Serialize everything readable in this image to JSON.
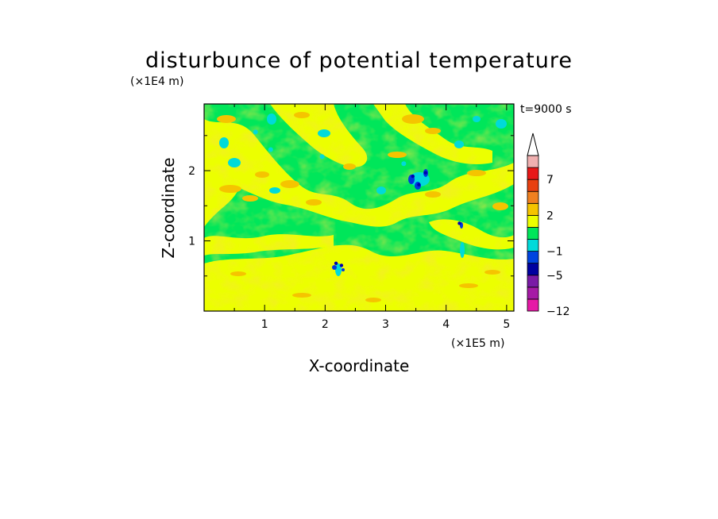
{
  "chart_data": {
    "type": "heatmap",
    "title": "disturbunce of potential temperature",
    "xlabel": "X-coordinate",
    "ylabel": "Z-coordinate",
    "x_scale_label": "(×1E5 m)",
    "y_scale_label": "(×1E4 m)",
    "time_label": "t=9000 s",
    "xlim": [
      0,
      5.12
    ],
    "ylim": [
      0,
      2.95
    ],
    "x_ticks": [
      "1",
      "2",
      "3",
      "4",
      "5"
    ],
    "y_ticks": [
      "1",
      "2"
    ],
    "colorbar": {
      "levels": [
        -12,
        -9,
        -7,
        -5,
        -3,
        -1,
        0,
        1,
        2,
        3,
        5,
        7,
        9,
        12
      ],
      "labels": [
        "7",
        "2",
        "−1",
        "−5",
        "−12"
      ],
      "extend": "max",
      "colors": [
        "#e61aa6",
        "#a61aa6",
        "#7a1aa6",
        "#0000a0",
        "#0044e0",
        "#00dada",
        "#00e65a",
        "#ecff00",
        "#f5c400",
        "#f08020",
        "#e84010",
        "#e81818",
        "#f0b0b0"
      ]
    },
    "field_features": [
      {
        "x": 3.45,
        "z": 1.92,
        "value": -5
      },
      {
        "x": 3.55,
        "z": 1.8,
        "value": -5
      },
      {
        "x": 3.66,
        "z": 1.97,
        "value": -5
      },
      {
        "x": 2.27,
        "z": 0.65,
        "value": -5
      },
      {
        "x": 2.18,
        "z": 0.68,
        "value": -5
      },
      {
        "x": 4.22,
        "z": 1.25,
        "value": -5
      },
      {
        "x": 1.1,
        "z": 2.3,
        "value": -1
      },
      {
        "x": 3.3,
        "z": 2.1,
        "value": -1
      },
      {
        "x": 0.85,
        "z": 2.55,
        "value": -1
      },
      {
        "x": 1.95,
        "z": 2.2,
        "value": -1
      }
    ]
  }
}
